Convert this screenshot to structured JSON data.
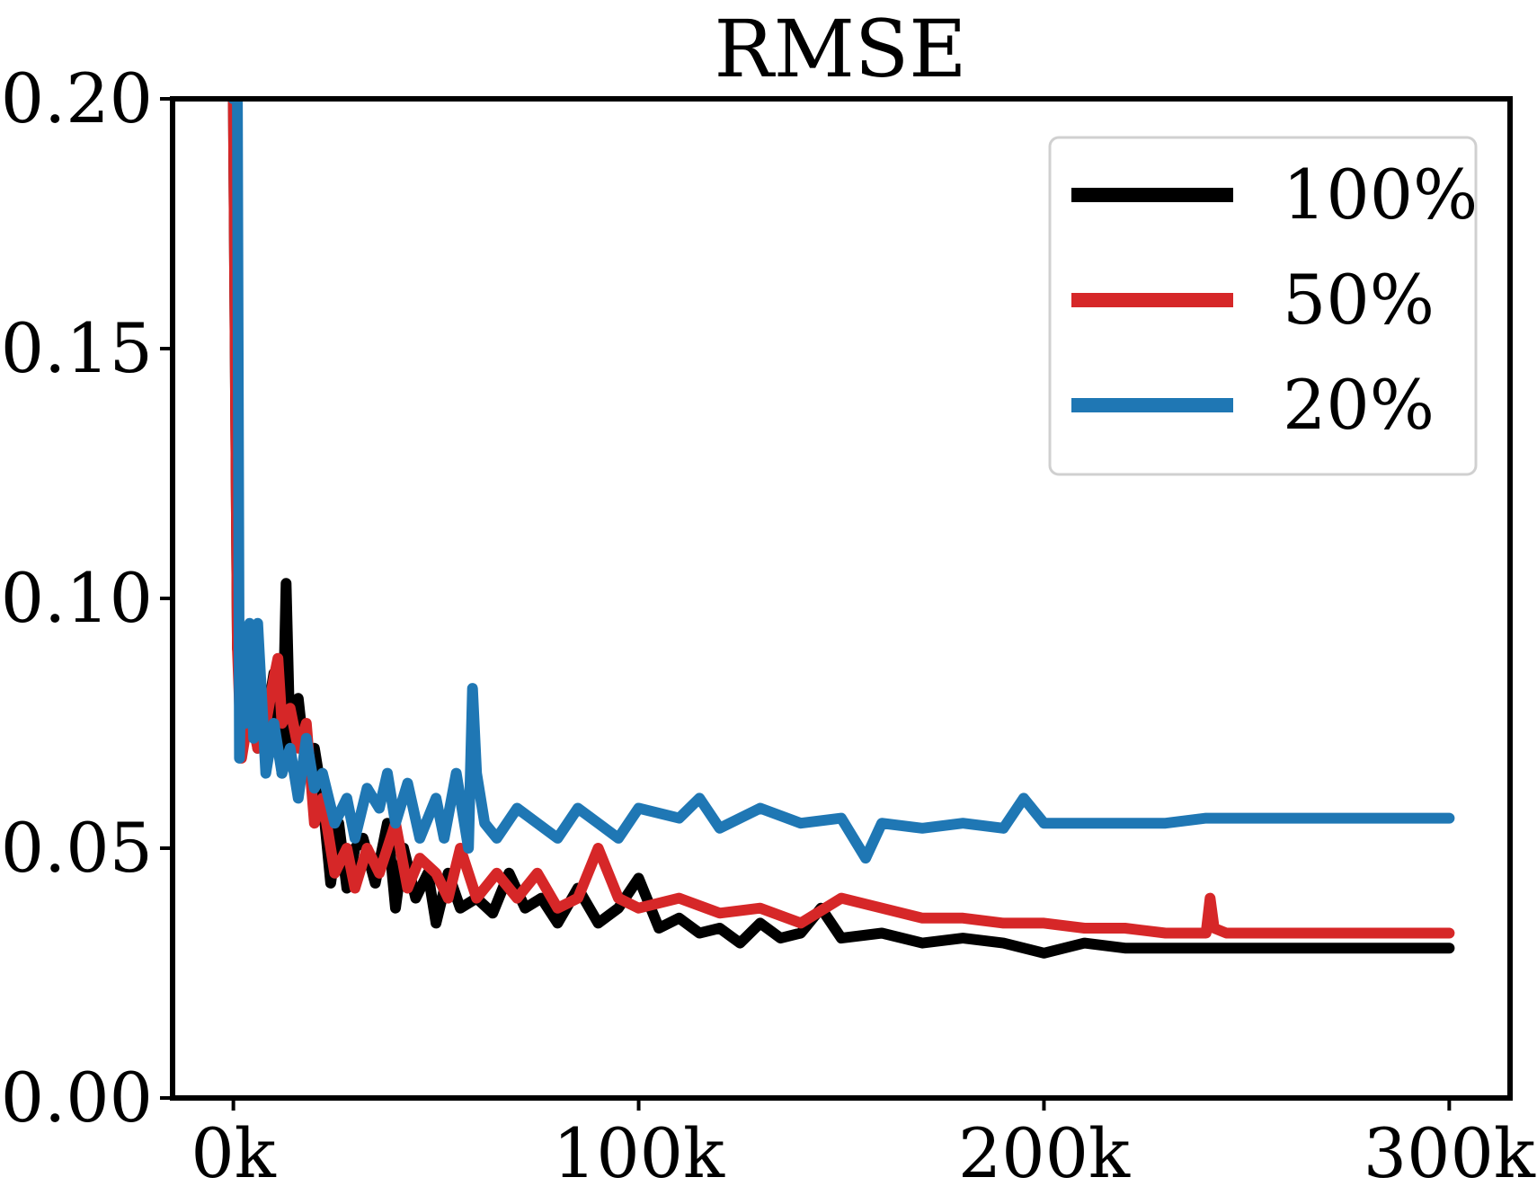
{
  "chart_data": {
    "type": "line",
    "title": "RMSE",
    "xlabel": "",
    "ylabel": "",
    "xlim": [
      -15000,
      315000
    ],
    "ylim": [
      0.0,
      0.2
    ],
    "x_ticks": [
      0,
      100000,
      200000,
      300000
    ],
    "x_tick_labels": [
      "0k",
      "100k",
      "200k",
      "300k"
    ],
    "y_ticks": [
      0.0,
      0.05,
      0.1,
      0.15,
      0.2
    ],
    "y_tick_labels": [
      "0.00",
      "0.05",
      "0.10",
      "0.15",
      "0.20"
    ],
    "grid": false,
    "legend_position": "top-right",
    "series": [
      {
        "name": "100%",
        "color": "#000000",
        "x": [
          0,
          1000,
          2000,
          3000,
          4000,
          5000,
          6000,
          8000,
          10000,
          12000,
          13000,
          14000,
          16000,
          18000,
          20000,
          22000,
          24000,
          26000,
          28000,
          30000,
          32000,
          35000,
          38000,
          40000,
          42000,
          45000,
          48000,
          50000,
          53000,
          56000,
          60000,
          64000,
          68000,
          72000,
          76000,
          80000,
          85000,
          90000,
          95000,
          100000,
          105000,
          110000,
          115000,
          120000,
          125000,
          130000,
          135000,
          140000,
          145000,
          150000,
          160000,
          170000,
          180000,
          190000,
          200000,
          210000,
          220000,
          230000,
          240000,
          250000,
          260000,
          270000,
          280000,
          290000,
          300000
        ],
        "values": [
          0.2,
          0.09,
          0.085,
          0.09,
          0.085,
          0.092,
          0.07,
          0.075,
          0.085,
          0.065,
          0.103,
          0.07,
          0.08,
          0.065,
          0.07,
          0.06,
          0.043,
          0.055,
          0.042,
          0.05,
          0.052,
          0.043,
          0.055,
          0.038,
          0.05,
          0.04,
          0.045,
          0.035,
          0.045,
          0.038,
          0.04,
          0.037,
          0.045,
          0.038,
          0.04,
          0.035,
          0.042,
          0.035,
          0.038,
          0.044,
          0.034,
          0.036,
          0.033,
          0.034,
          0.031,
          0.035,
          0.032,
          0.033,
          0.038,
          0.032,
          0.033,
          0.031,
          0.032,
          0.031,
          0.029,
          0.031,
          0.03,
          0.03,
          0.03,
          0.03,
          0.03,
          0.03,
          0.03,
          0.03,
          0.03
        ]
      },
      {
        "name": "50%",
        "color": "#d62728",
        "x": [
          0,
          1000,
          2000,
          4000,
          6000,
          8000,
          10000,
          11000,
          12000,
          14000,
          16000,
          18000,
          20000,
          22000,
          25000,
          28000,
          30000,
          33000,
          36000,
          40000,
          43000,
          46000,
          50000,
          53000,
          56000,
          60000,
          65000,
          70000,
          75000,
          80000,
          85000,
          90000,
          95000,
          100000,
          110000,
          120000,
          130000,
          140000,
          150000,
          160000,
          170000,
          180000,
          190000,
          200000,
          210000,
          220000,
          230000,
          240000,
          241000,
          242000,
          245000,
          250000,
          260000,
          270000,
          280000,
          290000,
          300000
        ],
        "values": [
          0.2,
          0.09,
          0.068,
          0.078,
          0.07,
          0.075,
          0.084,
          0.088,
          0.075,
          0.078,
          0.07,
          0.075,
          0.055,
          0.06,
          0.045,
          0.05,
          0.042,
          0.05,
          0.045,
          0.055,
          0.042,
          0.048,
          0.045,
          0.04,
          0.05,
          0.04,
          0.045,
          0.04,
          0.045,
          0.038,
          0.04,
          0.05,
          0.04,
          0.038,
          0.04,
          0.037,
          0.038,
          0.035,
          0.04,
          0.038,
          0.036,
          0.036,
          0.035,
          0.035,
          0.034,
          0.034,
          0.033,
          0.033,
          0.04,
          0.034,
          0.033,
          0.033,
          0.033,
          0.033,
          0.033,
          0.033,
          0.033
        ]
      },
      {
        "name": "20%",
        "color": "#1f77b4",
        "x": [
          0,
          500,
          1000,
          1500,
          2000,
          3000,
          4000,
          5000,
          6000,
          8000,
          10000,
          12000,
          14000,
          16000,
          18000,
          20000,
          22000,
          25000,
          28000,
          30000,
          33000,
          36000,
          38000,
          40000,
          43000,
          46000,
          50000,
          52000,
          55000,
          58000,
          59000,
          60000,
          62000,
          65000,
          70000,
          75000,
          80000,
          85000,
          90000,
          95000,
          100000,
          110000,
          115000,
          120000,
          130000,
          140000,
          150000,
          156000,
          160000,
          170000,
          180000,
          190000,
          195000,
          200000,
          210000,
          220000,
          230000,
          240000,
          250000,
          260000,
          270000,
          280000,
          290000,
          300000
        ],
        "values": [
          0.2,
          0.2,
          0.2,
          0.068,
          0.09,
          0.075,
          0.095,
          0.072,
          0.095,
          0.065,
          0.075,
          0.065,
          0.07,
          0.06,
          0.072,
          0.062,
          0.065,
          0.055,
          0.06,
          0.052,
          0.062,
          0.058,
          0.065,
          0.055,
          0.063,
          0.052,
          0.06,
          0.052,
          0.065,
          0.05,
          0.082,
          0.065,
          0.055,
          0.052,
          0.058,
          0.055,
          0.052,
          0.058,
          0.055,
          0.052,
          0.058,
          0.056,
          0.06,
          0.054,
          0.058,
          0.055,
          0.056,
          0.048,
          0.055,
          0.054,
          0.055,
          0.054,
          0.06,
          0.055,
          0.055,
          0.055,
          0.055,
          0.056,
          0.056,
          0.056,
          0.056,
          0.056,
          0.056,
          0.056
        ]
      }
    ]
  }
}
